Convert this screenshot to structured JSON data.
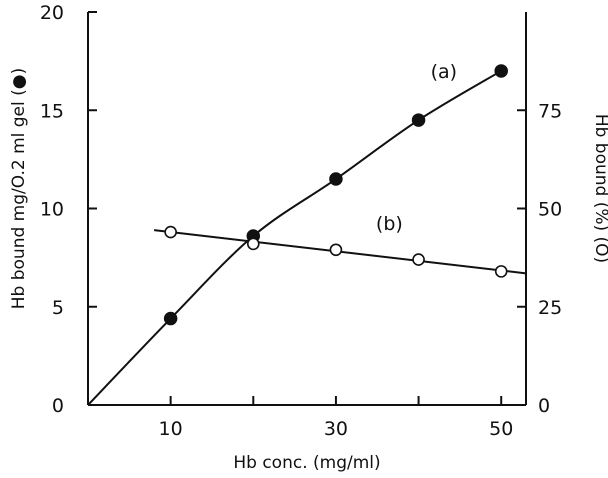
{
  "chart_data": {
    "type": "line",
    "xlabel": "Hb conc. (mg/ml)",
    "ylabel_left": "Hb bound mg/O.2 ml gel (●)",
    "ylabel_right": "Hb bound (%) (O)",
    "xlim": [
      0,
      53
    ],
    "ylim_left": [
      0,
      20
    ],
    "ylim_right": [
      0,
      100
    ],
    "x_ticks": [
      10,
      30,
      50
    ],
    "x_minor_ticks": [
      20,
      40
    ],
    "y_left_ticks": [
      0,
      5,
      10,
      15,
      20
    ],
    "y_right_ticks": [
      0,
      25,
      50,
      75
    ],
    "grid": false,
    "series": [
      {
        "name": "(a)",
        "marker": "filled-circle",
        "axis": "left",
        "x": [
          10,
          20,
          30,
          40,
          50
        ],
        "values": [
          4.4,
          8.6,
          11.5,
          14.5,
          17.0
        ],
        "curve_x": [
          0,
          10,
          20,
          30,
          40,
          50
        ],
        "curve_y": [
          0,
          4.4,
          8.6,
          11.5,
          14.5,
          17.0
        ]
      },
      {
        "name": "(b)",
        "marker": "open-circle",
        "axis": "right",
        "x": [
          10,
          20,
          30,
          40,
          50
        ],
        "values": [
          44,
          41,
          39.5,
          37,
          34
        ],
        "curve_x": [
          8,
          53
        ],
        "curve_y": [
          44.5,
          33.5
        ]
      }
    ],
    "annotations": [
      {
        "text": "(a)",
        "series": 0
      },
      {
        "text": "(b)",
        "series": 1
      }
    ]
  }
}
